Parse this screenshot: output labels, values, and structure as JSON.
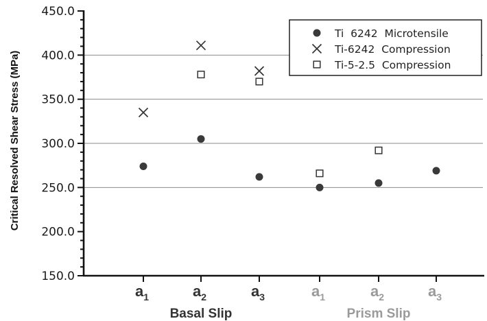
{
  "chart_data": {
    "type": "scatter",
    "ylabel": "Critical Resolved Shear Stress (MPa)",
    "ylim": [
      150,
      450
    ],
    "yticks": [
      "150.0",
      "200.0",
      "250.0",
      "300.0",
      "350.0",
      "400.0",
      "450.0"
    ],
    "grid": "horizontal at 250, 300, 350, 400",
    "legend_position": "top-right",
    "categories": [
      {
        "base": "a",
        "sub": "1",
        "group": 0
      },
      {
        "base": "a",
        "sub": "2",
        "group": 0
      },
      {
        "base": "a",
        "sub": "3",
        "group": 0
      },
      {
        "base": "a",
        "sub": "1",
        "group": 1
      },
      {
        "base": "a",
        "sub": "2",
        "group": 1
      },
      {
        "base": "a",
        "sub": "3",
        "group": 1
      }
    ],
    "groups": [
      {
        "label": "Basal Slip",
        "color": "#333333"
      },
      {
        "label": "Prism Slip",
        "color": "#9a9a9a"
      }
    ],
    "series": [
      {
        "name": "Ti  6242  Microtensile",
        "marker": "circle",
        "values": [
          274,
          305,
          262,
          250,
          255,
          269
        ]
      },
      {
        "name": "Ti-6242  Compression",
        "marker": "x",
        "values": [
          335,
          411,
          382,
          null,
          null,
          null
        ]
      },
      {
        "name": "Ti-5-2.5  Compression",
        "marker": "square",
        "values": [
          null,
          378,
          370,
          266,
          292,
          null
        ]
      }
    ]
  }
}
